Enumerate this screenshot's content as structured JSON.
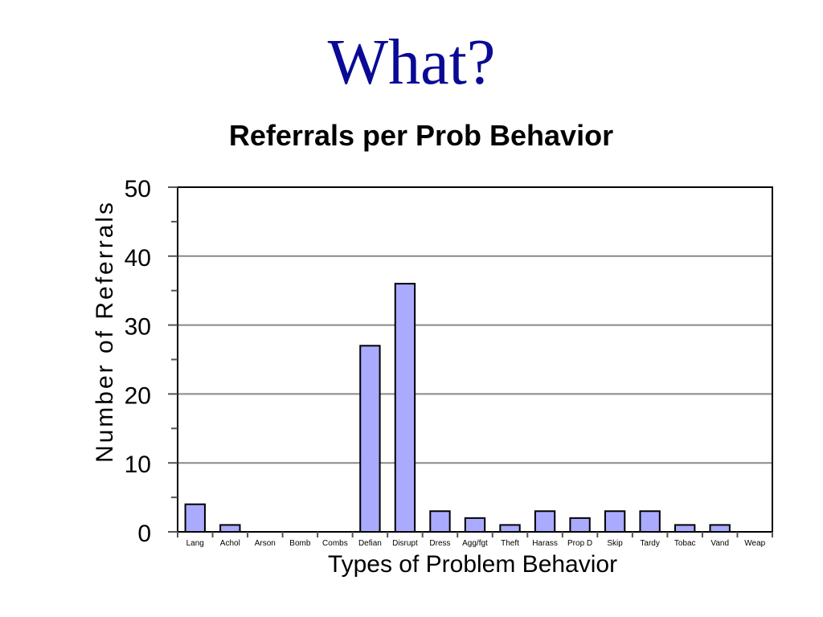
{
  "slide": {
    "title": "What?"
  },
  "chart_data": {
    "type": "bar",
    "title": "Referrals per Prob Behavior",
    "xlabel": "Types of Problem Behavior",
    "ylabel": "Number of Referrals",
    "ylim": [
      0,
      50
    ],
    "yticks": [
      0,
      10,
      20,
      30,
      40,
      50
    ],
    "categories": [
      "Lang",
      "Achol",
      "Arson",
      "Bomb",
      "Combs",
      "Defian",
      "Disrupt",
      "Dress",
      "Agg/fgt",
      "Theft",
      "Harass",
      "Prop D",
      "Skip",
      "Tardy",
      "Tobac",
      "Vand",
      "Weap"
    ],
    "values": [
      4,
      1,
      0,
      0,
      0,
      27,
      36,
      3,
      2,
      1,
      3,
      2,
      3,
      3,
      1,
      1,
      0
    ],
    "grid": true,
    "bar_color": "#aaaaff"
  }
}
